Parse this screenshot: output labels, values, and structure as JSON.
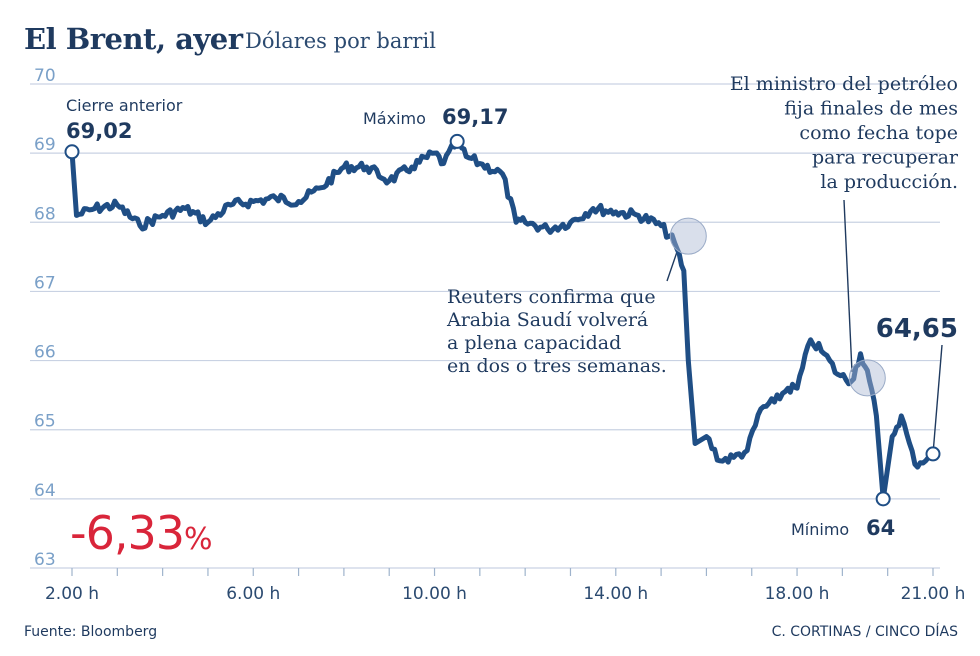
{
  "header": {
    "title": "El Brent, ayer",
    "subtitle": "Dólares por barril"
  },
  "chart_data": {
    "type": "line",
    "title": "El Brent, ayer",
    "subtitle": "Dólares por barril",
    "xlabel": "",
    "ylabel": "",
    "ylim": [
      63,
      70
    ],
    "y_ticks": [
      "63",
      "64",
      "65",
      "66",
      "67",
      "68",
      "69",
      "70"
    ],
    "x_ticks": [
      "2.00 h",
      "6.00 h",
      "10.00 h",
      "14.00 h",
      "18.00 h",
      "21.00 h"
    ],
    "x_tick_hours": [
      2,
      6,
      10,
      14,
      18,
      21
    ],
    "grid": true,
    "line_color": "#1f4e85",
    "series": [
      {
        "name": "",
        "x": [
          2.0,
          2.1,
          2.5,
          3.0,
          3.5,
          4.0,
          4.5,
          5.0,
          5.5,
          6.0,
          6.5,
          7.0,
          7.5,
          8.0,
          8.5,
          9.0,
          9.5,
          10.0,
          10.2,
          10.5,
          10.7,
          11.0,
          11.5,
          11.8,
          12.0,
          12.5,
          13.0,
          13.5,
          14.0,
          14.5,
          15.0,
          15.3,
          15.5,
          15.6,
          15.75,
          16.0,
          16.3,
          16.6,
          16.9,
          17.2,
          17.5,
          17.8,
          18.0,
          18.3,
          18.6,
          18.9,
          19.2,
          19.4,
          19.6,
          19.75,
          19.9,
          20.1,
          20.3,
          20.6,
          20.9,
          21.0
        ],
        "y": [
          69.02,
          68.1,
          68.2,
          68.25,
          67.95,
          68.1,
          68.2,
          68.0,
          68.25,
          68.3,
          68.35,
          68.3,
          68.5,
          68.8,
          68.8,
          68.6,
          68.8,
          69.0,
          68.85,
          69.17,
          68.95,
          68.85,
          68.7,
          68.0,
          68.0,
          67.9,
          68.0,
          68.2,
          68.15,
          68.1,
          67.95,
          67.7,
          67.3,
          66.0,
          64.8,
          64.9,
          64.55,
          64.6,
          64.7,
          65.3,
          65.4,
          65.6,
          65.6,
          66.3,
          66.1,
          65.8,
          65.7,
          66.1,
          65.7,
          65.2,
          64.0,
          64.9,
          65.2,
          64.5,
          64.6,
          64.65
        ]
      }
    ],
    "annotations": {
      "start_label": "Cierre anterior",
      "start_value": "69,02",
      "max_label": "Máximo",
      "max_value": "69,17",
      "min_label": "Mínimo",
      "min_value": "64",
      "end_value": "64,65",
      "reuters_note": [
        "Reuters confirma que",
        "Arabia Saudí volverá",
        "a plena capacidad",
        "en dos o tres semanas."
      ],
      "minister_note": [
        "El ministro del petróleo",
        "fija finales de mes",
        "como fecha tope",
        "para recuperar",
        "la producción."
      ]
    }
  },
  "summary": {
    "change": "-6,33",
    "change_unit": "%",
    "change_color": "#d9253a"
  },
  "footer": {
    "source": "Fuente: Bloomberg",
    "credit": "C. CORTINAS / CINCO DÍAS"
  }
}
